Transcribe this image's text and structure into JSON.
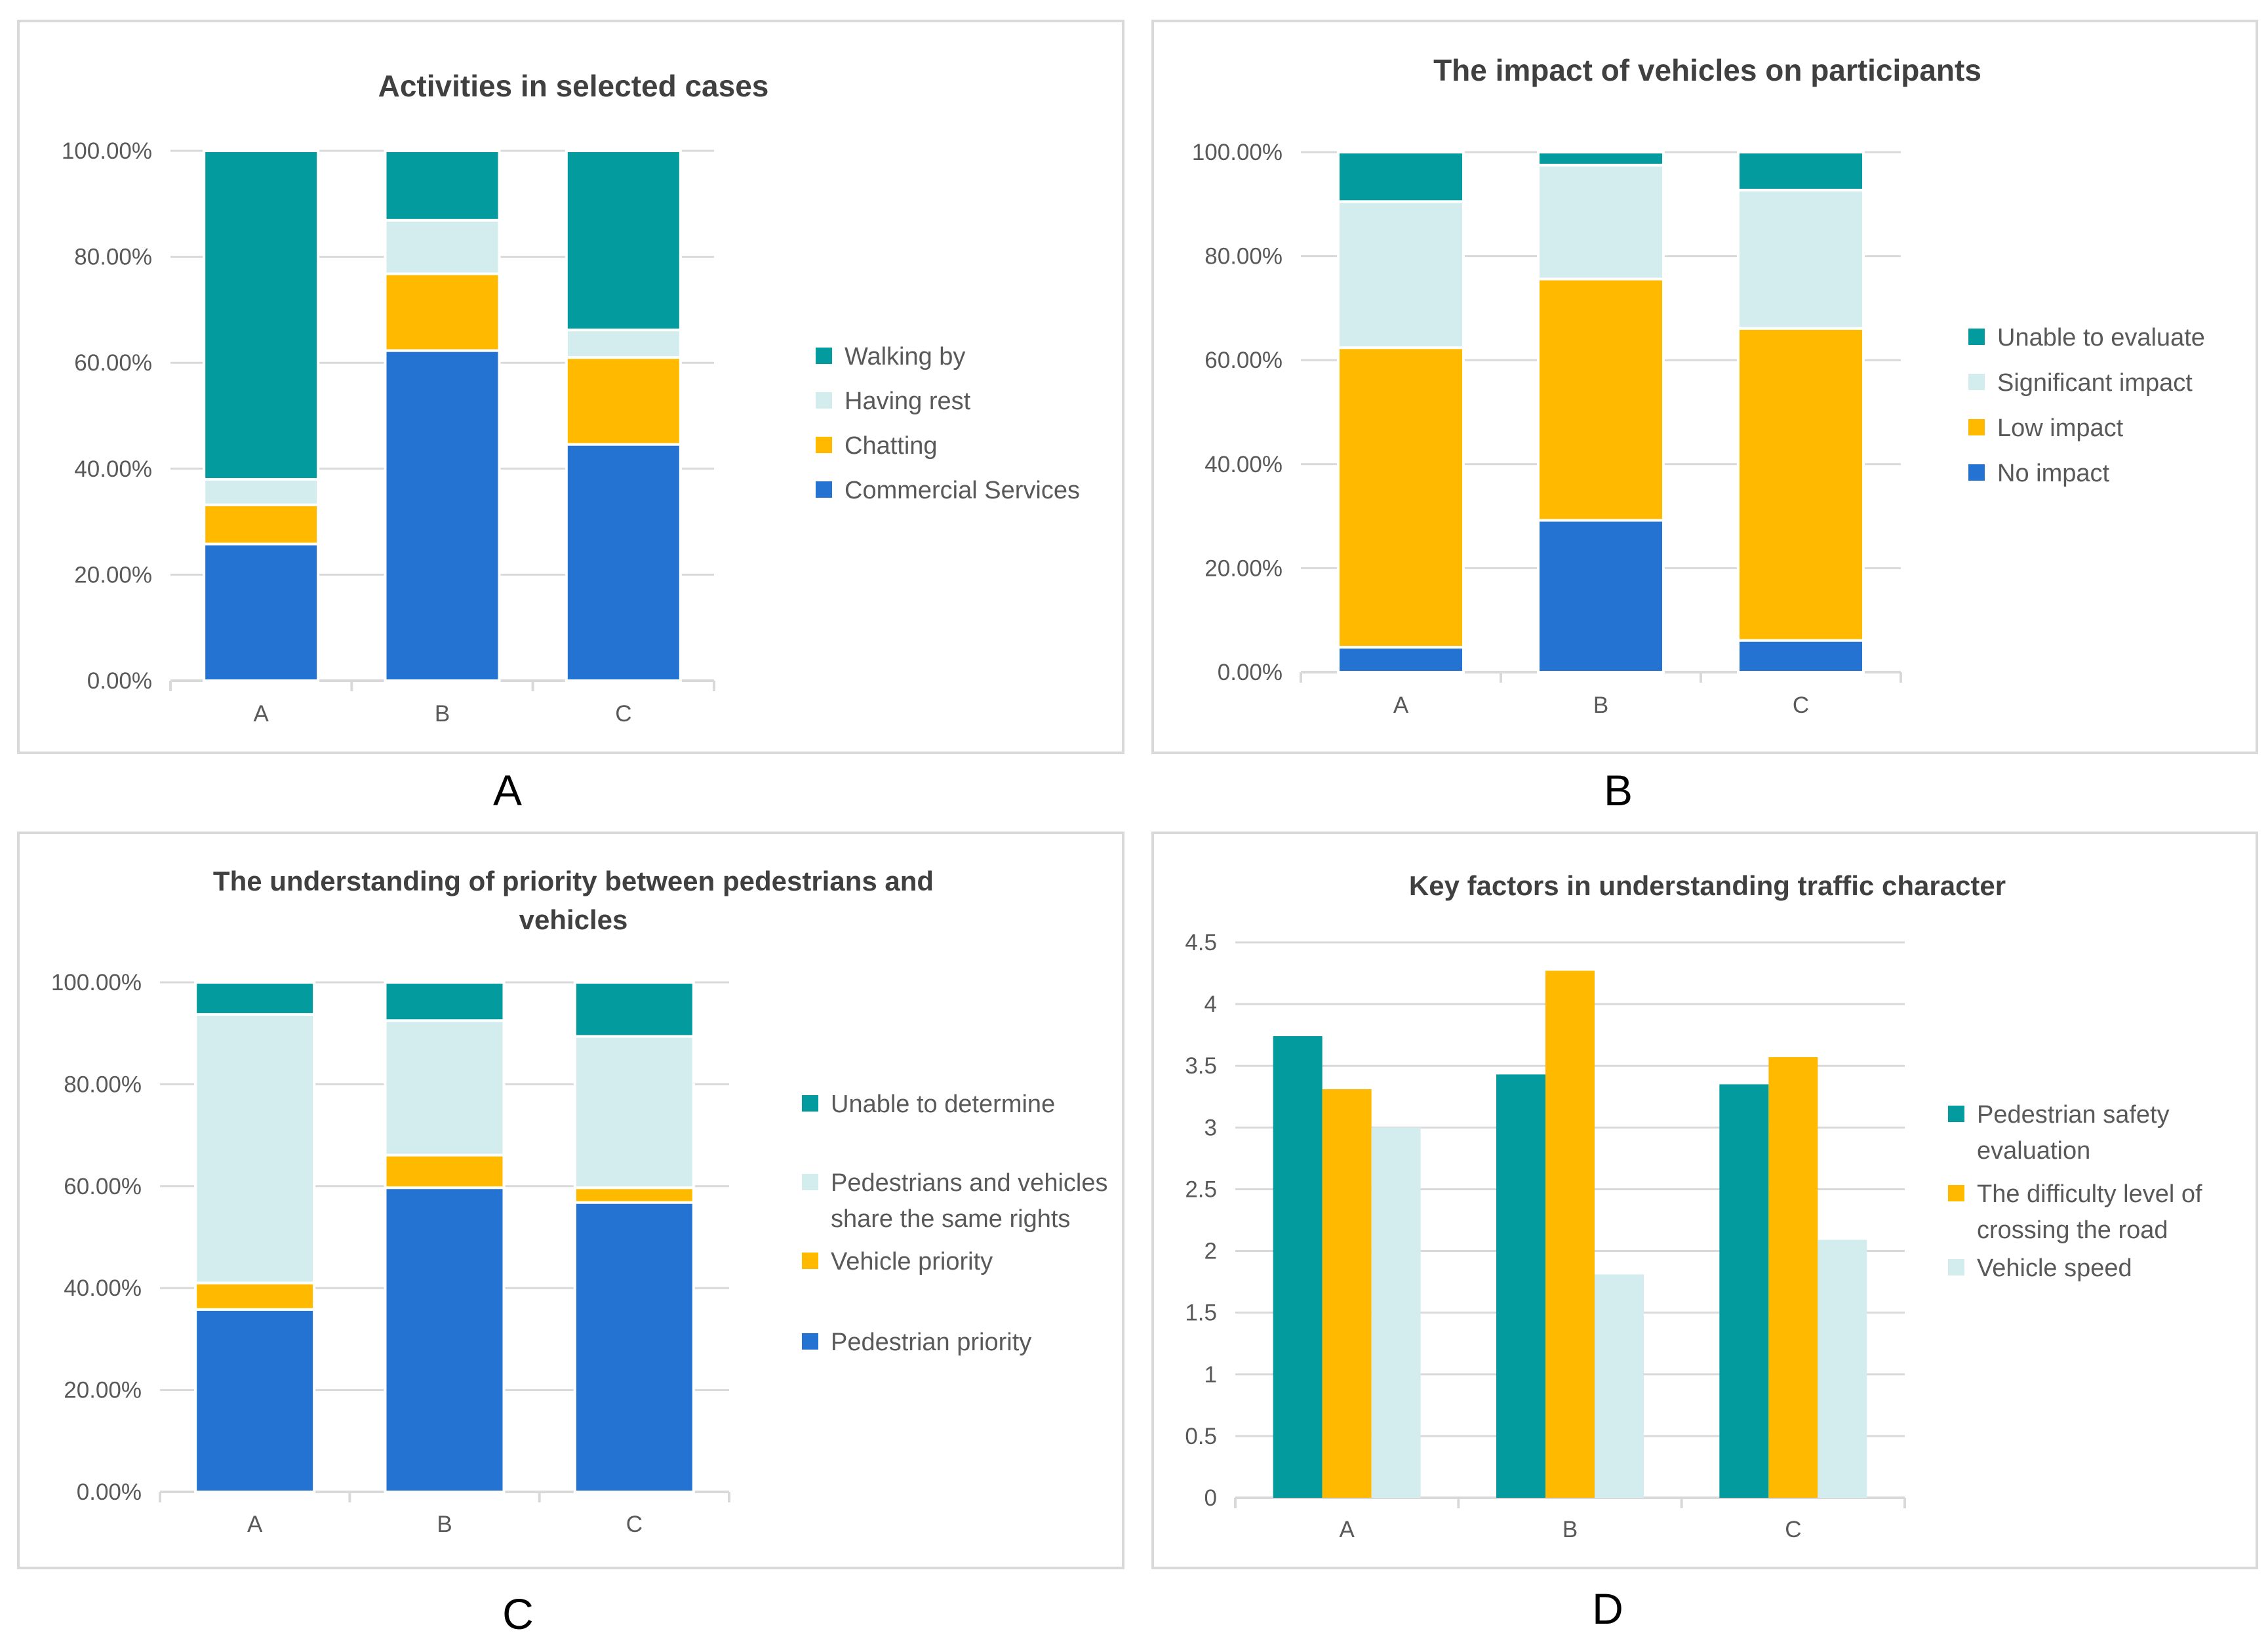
{
  "colors": {
    "teal": "#039b9e",
    "light": "#d3edef",
    "orange": "#ffba00",
    "blue": "#2472d1",
    "axis_text": "#595959",
    "title_text": "#404040",
    "grid": "#d9d9d9"
  },
  "panel_letters": [
    "A",
    "B",
    "C",
    "D"
  ],
  "chart_data": [
    {
      "type": "bar",
      "stacked": true,
      "title": "Activities in selected cases",
      "categories": [
        "A",
        "B",
        "C"
      ],
      "ylim": [
        0,
        100
      ],
      "yticks": [
        "0.00%",
        "20.00%",
        "40.00%",
        "60.00%",
        "80.00%",
        "100.00%"
      ],
      "legend_position": "right",
      "series": [
        {
          "name": "Commercial Services",
          "color": "#2472d1",
          "values": [
            25.8,
            62.3,
            44.6
          ]
        },
        {
          "name": "Chatting",
          "color": "#ffba00",
          "values": [
            7.4,
            14.5,
            16.4
          ]
        },
        {
          "name": "Having rest",
          "color": "#d3edef",
          "values": [
            4.8,
            10.1,
            5.2
          ]
        },
        {
          "name": "Walking by",
          "color": "#039b9e",
          "values": [
            62.0,
            13.1,
            33.8
          ]
        }
      ]
    },
    {
      "type": "bar",
      "stacked": true,
      "title": "The impact of vehicles on participants",
      "categories": [
        "A",
        "B",
        "C"
      ],
      "ylim": [
        0,
        100
      ],
      "yticks": [
        "0.00%",
        "20.00%",
        "40.00%",
        "60.00%",
        "80.00%",
        "100.00%"
      ],
      "legend_position": "right",
      "series": [
        {
          "name": "No impact",
          "color": "#2472d1",
          "values": [
            4.8,
            29.2,
            6.1
          ]
        },
        {
          "name": "Low impact",
          "color": "#ffba00",
          "values": [
            57.6,
            46.4,
            60.0
          ]
        },
        {
          "name": "Significant impact",
          "color": "#d3edef",
          "values": [
            28.1,
            21.9,
            26.6
          ]
        },
        {
          "name": "Unable to evaluate",
          "color": "#039b9e",
          "values": [
            9.5,
            2.5,
            7.3
          ]
        }
      ]
    },
    {
      "type": "bar",
      "stacked": true,
      "title": [
        "The understanding of priority between pedestrians and",
        "vehicles"
      ],
      "categories": [
        "A",
        "B",
        "C"
      ],
      "ylim": [
        0,
        100
      ],
      "yticks": [
        "0.00%",
        "20.00%",
        "40.00%",
        "60.00%",
        "80.00%",
        "100.00%"
      ],
      "legend_position": "right",
      "series": [
        {
          "name": "Pedestrian priority",
          "color": "#2472d1",
          "values": [
            35.8,
            59.7,
            56.8
          ]
        },
        {
          "name": "Vehicle priority",
          "color": "#ffba00",
          "values": [
            5.2,
            6.4,
            2.9
          ]
        },
        {
          "name": [
            "Pedestrians and vehicles",
            "share the same rights"
          ],
          "color": "#d3edef",
          "values": [
            52.7,
            26.4,
            29.7
          ]
        },
        {
          "name": "Unable to determine",
          "color": "#039b9e",
          "values": [
            6.3,
            7.5,
            10.6
          ]
        }
      ]
    },
    {
      "type": "bar",
      "stacked": false,
      "title": "Key factors  in understanding traffic character",
      "categories": [
        "A",
        "B",
        "C"
      ],
      "ylim": [
        0,
        4.5
      ],
      "yticks": [
        "0",
        "0.5",
        "1",
        "1.5",
        "2",
        "2.5",
        "3",
        "3.5",
        "4",
        "4.5"
      ],
      "legend_position": "right",
      "series": [
        {
          "name": [
            "Pedestrian safety",
            "evaluation"
          ],
          "color": "#039b9e",
          "values": [
            3.74,
            3.43,
            3.35
          ]
        },
        {
          "name": [
            "The difficulty level of",
            "crossing the road"
          ],
          "color": "#ffba00",
          "values": [
            3.31,
            4.27,
            3.57
          ]
        },
        {
          "name": "Vehicle speed",
          "color": "#d3edef",
          "values": [
            3.0,
            1.81,
            2.09
          ]
        }
      ]
    }
  ]
}
